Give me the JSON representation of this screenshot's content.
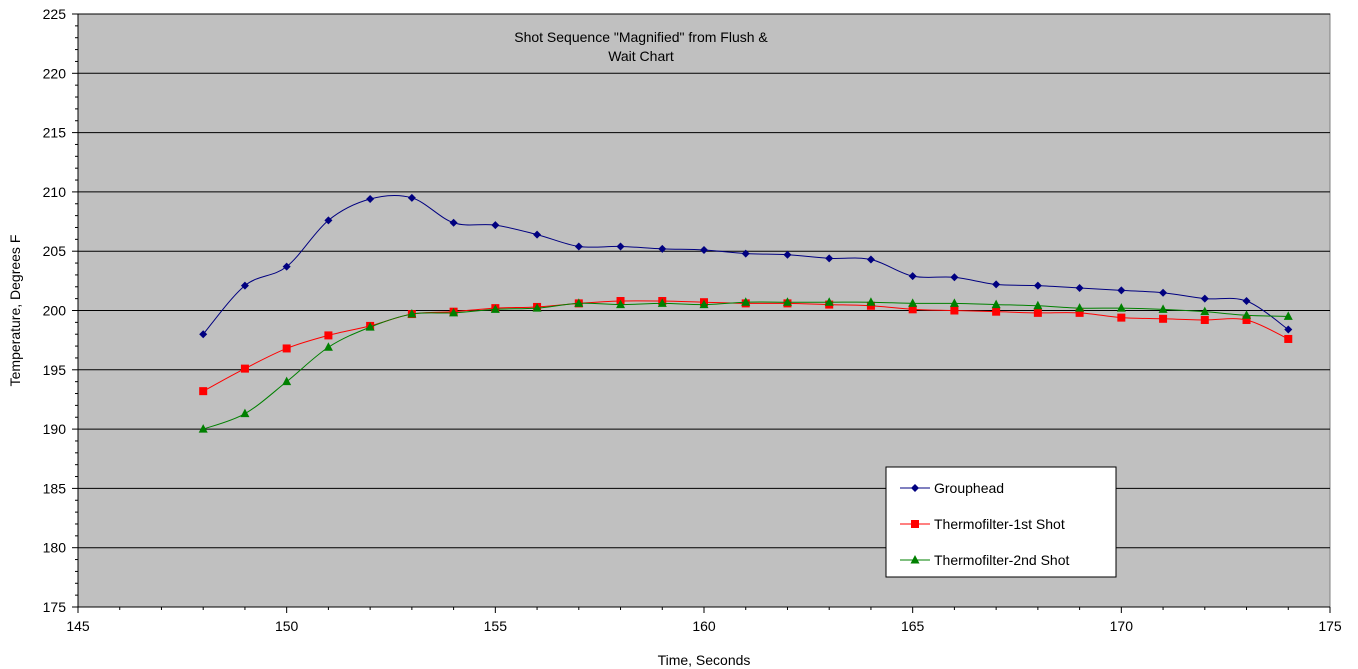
{
  "chart_data": {
    "type": "line",
    "title_lines": [
      "Shot Sequence \"Magnified\" from Flush &",
      "Wait Chart"
    ],
    "xlabel": "Time, Seconds",
    "ylabel": "Temperature, Degrees F",
    "xlim": [
      145,
      175
    ],
    "ylim": [
      175,
      225
    ],
    "xticks": [
      145,
      150,
      155,
      160,
      165,
      170,
      175
    ],
    "yticks": [
      175,
      180,
      185,
      190,
      195,
      200,
      205,
      210,
      215,
      220,
      225
    ],
    "grid": "horizontal",
    "plot_background": "#c0c0c0",
    "legend_position": "bottom-right",
    "x": [
      148,
      149,
      150,
      151,
      152,
      153,
      154,
      155,
      156,
      157,
      158,
      159,
      160,
      161,
      162,
      163,
      164,
      165,
      166,
      167,
      168,
      169,
      170,
      171,
      172,
      173,
      174
    ],
    "series": [
      {
        "name": "Grouphead",
        "color": "#000080",
        "marker": "diamond",
        "values": [
          198.0,
          202.1,
          203.7,
          207.6,
          209.4,
          209.5,
          207.4,
          207.2,
          206.4,
          205.4,
          205.4,
          205.2,
          205.1,
          204.8,
          204.7,
          204.4,
          204.3,
          202.9,
          202.8,
          202.2,
          202.1,
          201.9,
          201.7,
          201.5,
          201.0,
          200.8,
          198.4
        ]
      },
      {
        "name": "Thermofilter-1st Shot",
        "color": "#ff0000",
        "marker": "square",
        "values": [
          193.2,
          195.1,
          196.8,
          197.9,
          198.7,
          199.7,
          199.9,
          200.2,
          200.3,
          200.6,
          200.8,
          200.8,
          200.7,
          200.6,
          200.6,
          200.5,
          200.4,
          200.1,
          200.0,
          199.9,
          199.8,
          199.8,
          199.4,
          199.3,
          199.2,
          199.2,
          197.6
        ]
      },
      {
        "name": "Thermofilter-2nd Shot",
        "color": "#008000",
        "marker": "triangle",
        "values": [
          190.0,
          191.3,
          194.0,
          196.9,
          198.6,
          199.7,
          199.8,
          200.1,
          200.2,
          200.6,
          200.5,
          200.6,
          200.5,
          200.7,
          200.7,
          200.7,
          200.7,
          200.6,
          200.6,
          200.5,
          200.4,
          200.2,
          200.2,
          200.1,
          199.9,
          199.6,
          199.5
        ]
      }
    ]
  }
}
